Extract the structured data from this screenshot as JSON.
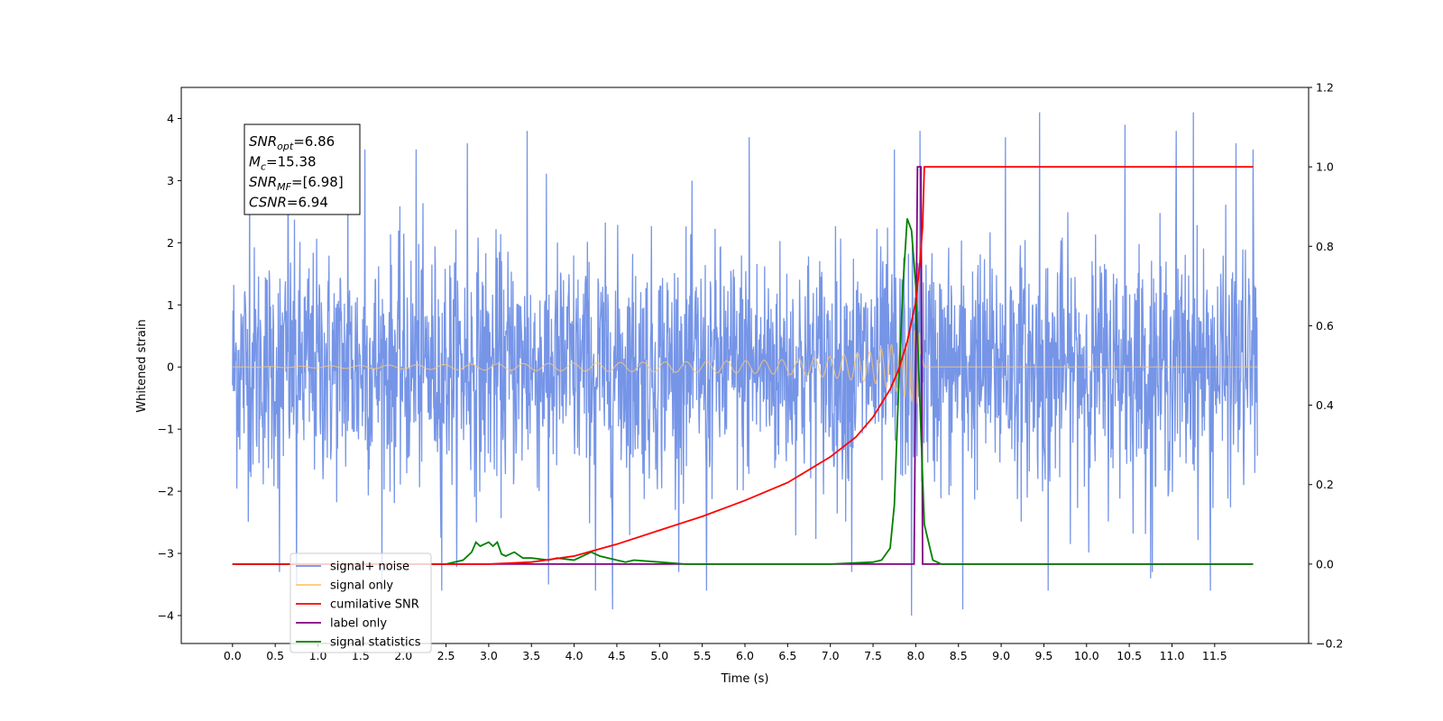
{
  "chart_data": {
    "type": "line",
    "xlabel": "Time (s)",
    "ylabel": "Whitened strain",
    "xlim": [
      -0.6,
      12.6
    ],
    "ylim": [
      -4.45,
      4.5
    ],
    "y2lim": [
      -0.2,
      1.2
    ],
    "x_ticks": [
      0.0,
      0.5,
      1.0,
      1.5,
      2.0,
      2.5,
      3.0,
      3.5,
      4.0,
      4.5,
      5.0,
      5.5,
      6.0,
      6.5,
      7.0,
      7.5,
      8.0,
      8.5,
      9.0,
      9.5,
      10.0,
      10.5,
      11.0,
      11.5
    ],
    "x_tick_labels": [
      "0.0",
      "0.5",
      "1.0",
      "1.5",
      "2.0",
      "2.5",
      "3.0",
      "3.5",
      "4.0",
      "4.5",
      "5.0",
      "5.5",
      "6.0",
      "6.5",
      "7.0",
      "7.5",
      "8.0",
      "8.5",
      "9.0",
      "9.5",
      "10.0",
      "10.5",
      "11.0",
      "11.5"
    ],
    "y_ticks": [
      -4,
      -3,
      -2,
      -1,
      0,
      1,
      2,
      3,
      4
    ],
    "y_tick_labels": [
      "−4",
      "−3",
      "−2",
      "−1",
      "0",
      "1",
      "2",
      "3",
      "4"
    ],
    "y2_ticks": [
      -0.2,
      0.0,
      0.2,
      0.4,
      0.6,
      0.8,
      1.0,
      1.2
    ],
    "y2_tick_labels": [
      "−0.2",
      "0.0",
      "0.2",
      "0.4",
      "0.6",
      "0.8",
      "1.0",
      "1.2"
    ],
    "legend_position": "lower-left",
    "grid": false,
    "series": [
      {
        "name": "signal+ noise",
        "color": "#6f8fe6",
        "axis": "left",
        "x_range": [
          0.0,
          12.0
        ],
        "noise_std": 0.95,
        "spike_times": [
          0.2,
          0.55,
          0.65,
          0.75,
          1.35,
          1.55,
          1.75,
          2.15,
          2.45,
          2.75,
          3.45,
          3.7,
          4.25,
          4.45,
          5.55,
          6.05,
          7.25,
          7.75,
          7.95,
          8.05,
          8.55,
          9.05,
          9.45,
          9.55,
          10.45,
          10.75,
          11.05,
          11.25,
          11.45,
          11.75,
          11.95
        ],
        "spike_values": [
          3.3,
          -3.3,
          3.5,
          -3.5,
          3.6,
          3.5,
          -3.6,
          3.5,
          -3.6,
          3.6,
          3.8,
          -3.5,
          -3.6,
          -3.9,
          -3.6,
          3.7,
          -3.3,
          3.5,
          -4.0,
          3.8,
          -3.9,
          3.7,
          4.1,
          -3.6,
          3.9,
          -3.4,
          3.8,
          4.1,
          -3.6,
          3.6,
          3.5
        ]
      },
      {
        "name": "signal only",
        "color": "#ffc66e",
        "axis": "left",
        "chirp_peak_time": 8.05,
        "amplitude_envelope": {
          "t": [
            0.0,
            3.0,
            5.0,
            6.0,
            6.5,
            7.0,
            7.5,
            7.8,
            8.0,
            8.05,
            8.1,
            12.0
          ],
          "a": [
            0.0,
            0.05,
            0.08,
            0.1,
            0.12,
            0.17,
            0.25,
            0.4,
            0.6,
            0.55,
            0.0,
            0.0
          ]
        }
      },
      {
        "name": "cumilative SNR",
        "color": "#ff0000",
        "axis": "right",
        "x": [
          0.0,
          3.0,
          3.5,
          4.0,
          4.5,
          5.0,
          5.5,
          6.0,
          6.5,
          7.0,
          7.3,
          7.5,
          7.7,
          7.8,
          7.9,
          8.0,
          8.05,
          8.08,
          8.1,
          11.95
        ],
        "y": [
          0.0,
          0.0,
          0.005,
          0.02,
          0.05,
          0.085,
          0.12,
          0.16,
          0.205,
          0.27,
          0.32,
          0.37,
          0.44,
          0.49,
          0.56,
          0.66,
          0.76,
          0.85,
          1.0,
          1.0
        ]
      },
      {
        "name": "label only",
        "color": "#800080",
        "axis": "right",
        "x": [
          0.0,
          7.98,
          8.02,
          8.06,
          8.08,
          11.95
        ],
        "y": [
          0.0,
          0.0,
          1.0,
          1.0,
          0.0,
          0.0
        ]
      },
      {
        "name": "signal statistics",
        "color": "#008000",
        "axis": "right",
        "x": [
          0.0,
          2.5,
          2.7,
          2.8,
          2.85,
          2.9,
          3.0,
          3.05,
          3.1,
          3.15,
          3.2,
          3.3,
          3.4,
          3.5,
          3.7,
          3.8,
          4.0,
          4.2,
          4.25,
          4.3,
          4.5,
          4.6,
          4.7,
          5.0,
          5.3,
          7.0,
          7.5,
          7.6,
          7.7,
          7.75,
          7.8,
          7.85,
          7.9,
          7.95,
          8.0,
          8.05,
          8.1,
          8.2,
          8.3,
          11.95
        ],
        "y": [
          0.0,
          0.0,
          0.01,
          0.03,
          0.055,
          0.045,
          0.055,
          0.045,
          0.055,
          0.025,
          0.02,
          0.03,
          0.015,
          0.015,
          0.01,
          0.015,
          0.01,
          0.03,
          0.025,
          0.02,
          0.01,
          0.005,
          0.01,
          0.005,
          0.0,
          0.0,
          0.005,
          0.01,
          0.04,
          0.15,
          0.45,
          0.7,
          0.87,
          0.84,
          0.7,
          0.4,
          0.1,
          0.01,
          0.0,
          0.0
        ]
      }
    ],
    "annotation_lines": [
      {
        "label": "SNR",
        "sub": "opt",
        "value": "=6.86"
      },
      {
        "label": "M",
        "sub": "c",
        "value": "=15.38"
      },
      {
        "label": "SNR",
        "sub": "MF",
        "value": "=[6.98]"
      },
      {
        "label": "CSNR",
        "sub": "",
        "value": "=6.94"
      }
    ]
  }
}
